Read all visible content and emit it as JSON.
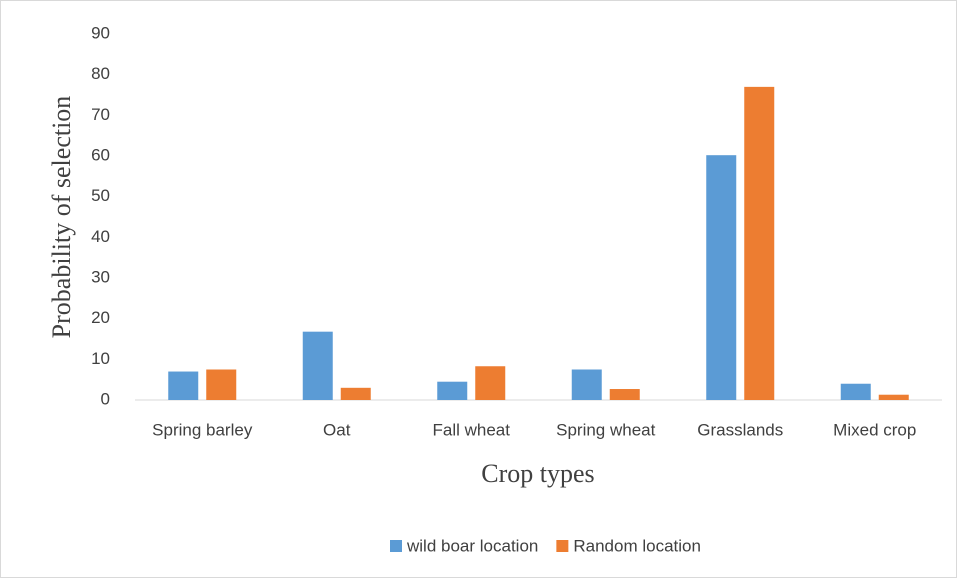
{
  "chart_data": {
    "type": "bar",
    "x_label": "Crop types",
    "y_label": "Probability of selection",
    "categories": [
      "Spring barley",
      "Oat",
      "Fall wheat",
      "Spring wheat",
      "Grasslands",
      "Mixed crop"
    ],
    "series": [
      {
        "name": "wild boar location",
        "color": "#5b9bd5",
        "values": [
          7,
          16.8,
          4.5,
          7.5,
          60.2,
          4
        ]
      },
      {
        "name": "Random location",
        "color": "#ed7d31",
        "values": [
          7.5,
          3,
          8.3,
          2.7,
          77,
          1.3
        ]
      }
    ],
    "ylim": [
      0,
      90
    ],
    "yticks": [
      0,
      10,
      20,
      30,
      40,
      50,
      60,
      70,
      80,
      90
    ],
    "grid": false,
    "legend": "bottom"
  }
}
